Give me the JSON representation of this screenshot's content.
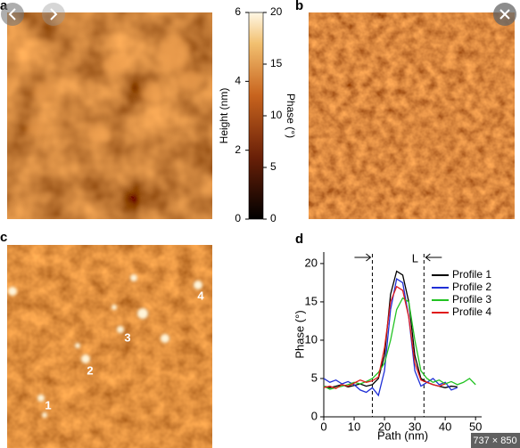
{
  "panel_labels": [
    "a",
    "b",
    "c",
    "d"
  ],
  "colorbar": {
    "height_label": "Height (nm)",
    "height_lim": [
      0,
      6
    ],
    "height_ticks": [
      0,
      2,
      4,
      6
    ],
    "phase_label": "Phase (°)",
    "phase_lim": [
      0,
      20
    ],
    "phase_ticks": [
      0,
      5,
      10,
      15,
      20
    ]
  },
  "particle_labels": [
    "1",
    "2",
    "3",
    "4"
  ],
  "viewer": {
    "image_size": "737 × 850"
  },
  "chart_data": {
    "type": "line",
    "xlabel": "Path (nm)",
    "ylabel": "Phase (°)",
    "annotation": "L",
    "marker_lines": [
      16,
      33
    ],
    "x": [
      0,
      2,
      4,
      6,
      8,
      10,
      12,
      14,
      16,
      18,
      20,
      22,
      24,
      26,
      28,
      30,
      32,
      34,
      36,
      38,
      40,
      42,
      44,
      46,
      48,
      50
    ],
    "series": [
      {
        "name": "Profile 1",
        "color": "#000000",
        "values": [
          4,
          3.8,
          4,
          4.2,
          3.9,
          4.1,
          4.3,
          4,
          4.2,
          5,
          8,
          16,
          19,
          18.5,
          15,
          8,
          5,
          4.5,
          4.2,
          4,
          3.8,
          4,
          3.9,
          null,
          null,
          null
        ]
      },
      {
        "name": "Profile 2",
        "color": "#1f2fd6",
        "values": [
          5,
          4.5,
          4.8,
          4.3,
          4.6,
          4.2,
          3.5,
          3.2,
          3.8,
          2.8,
          6,
          14,
          18,
          17.5,
          13,
          6,
          4,
          4.5,
          5,
          4.2,
          4.5,
          3.5,
          3.8,
          null,
          null,
          null
        ]
      },
      {
        "name": "Profile 3",
        "color": "#22c322",
        "values": [
          4,
          3.6,
          3.8,
          4,
          4.2,
          4.5,
          4.3,
          4.6,
          5,
          5.8,
          7,
          10,
          14,
          15.5,
          15,
          10,
          6,
          5,
          4.5,
          4.8,
          4.3,
          4.6,
          4.2,
          4.5,
          5,
          4.2
        ]
      },
      {
        "name": "Profile 4",
        "color": "#e01b1b",
        "values": [
          3.8,
          4,
          3.7,
          4.2,
          4,
          4.4,
          4.8,
          4.5,
          4.7,
          5.2,
          9,
          15,
          17,
          16.5,
          13,
          7,
          4.8,
          4.5,
          4.2,
          4,
          4.3,
          null,
          null,
          null,
          null,
          null
        ]
      }
    ],
    "xlim": [
      0,
      52
    ],
    "ylim": [
      0,
      21.5
    ],
    "xticks": [
      0,
      10,
      20,
      30,
      40,
      50
    ],
    "yticks": [
      0,
      5,
      10,
      15,
      20
    ]
  }
}
